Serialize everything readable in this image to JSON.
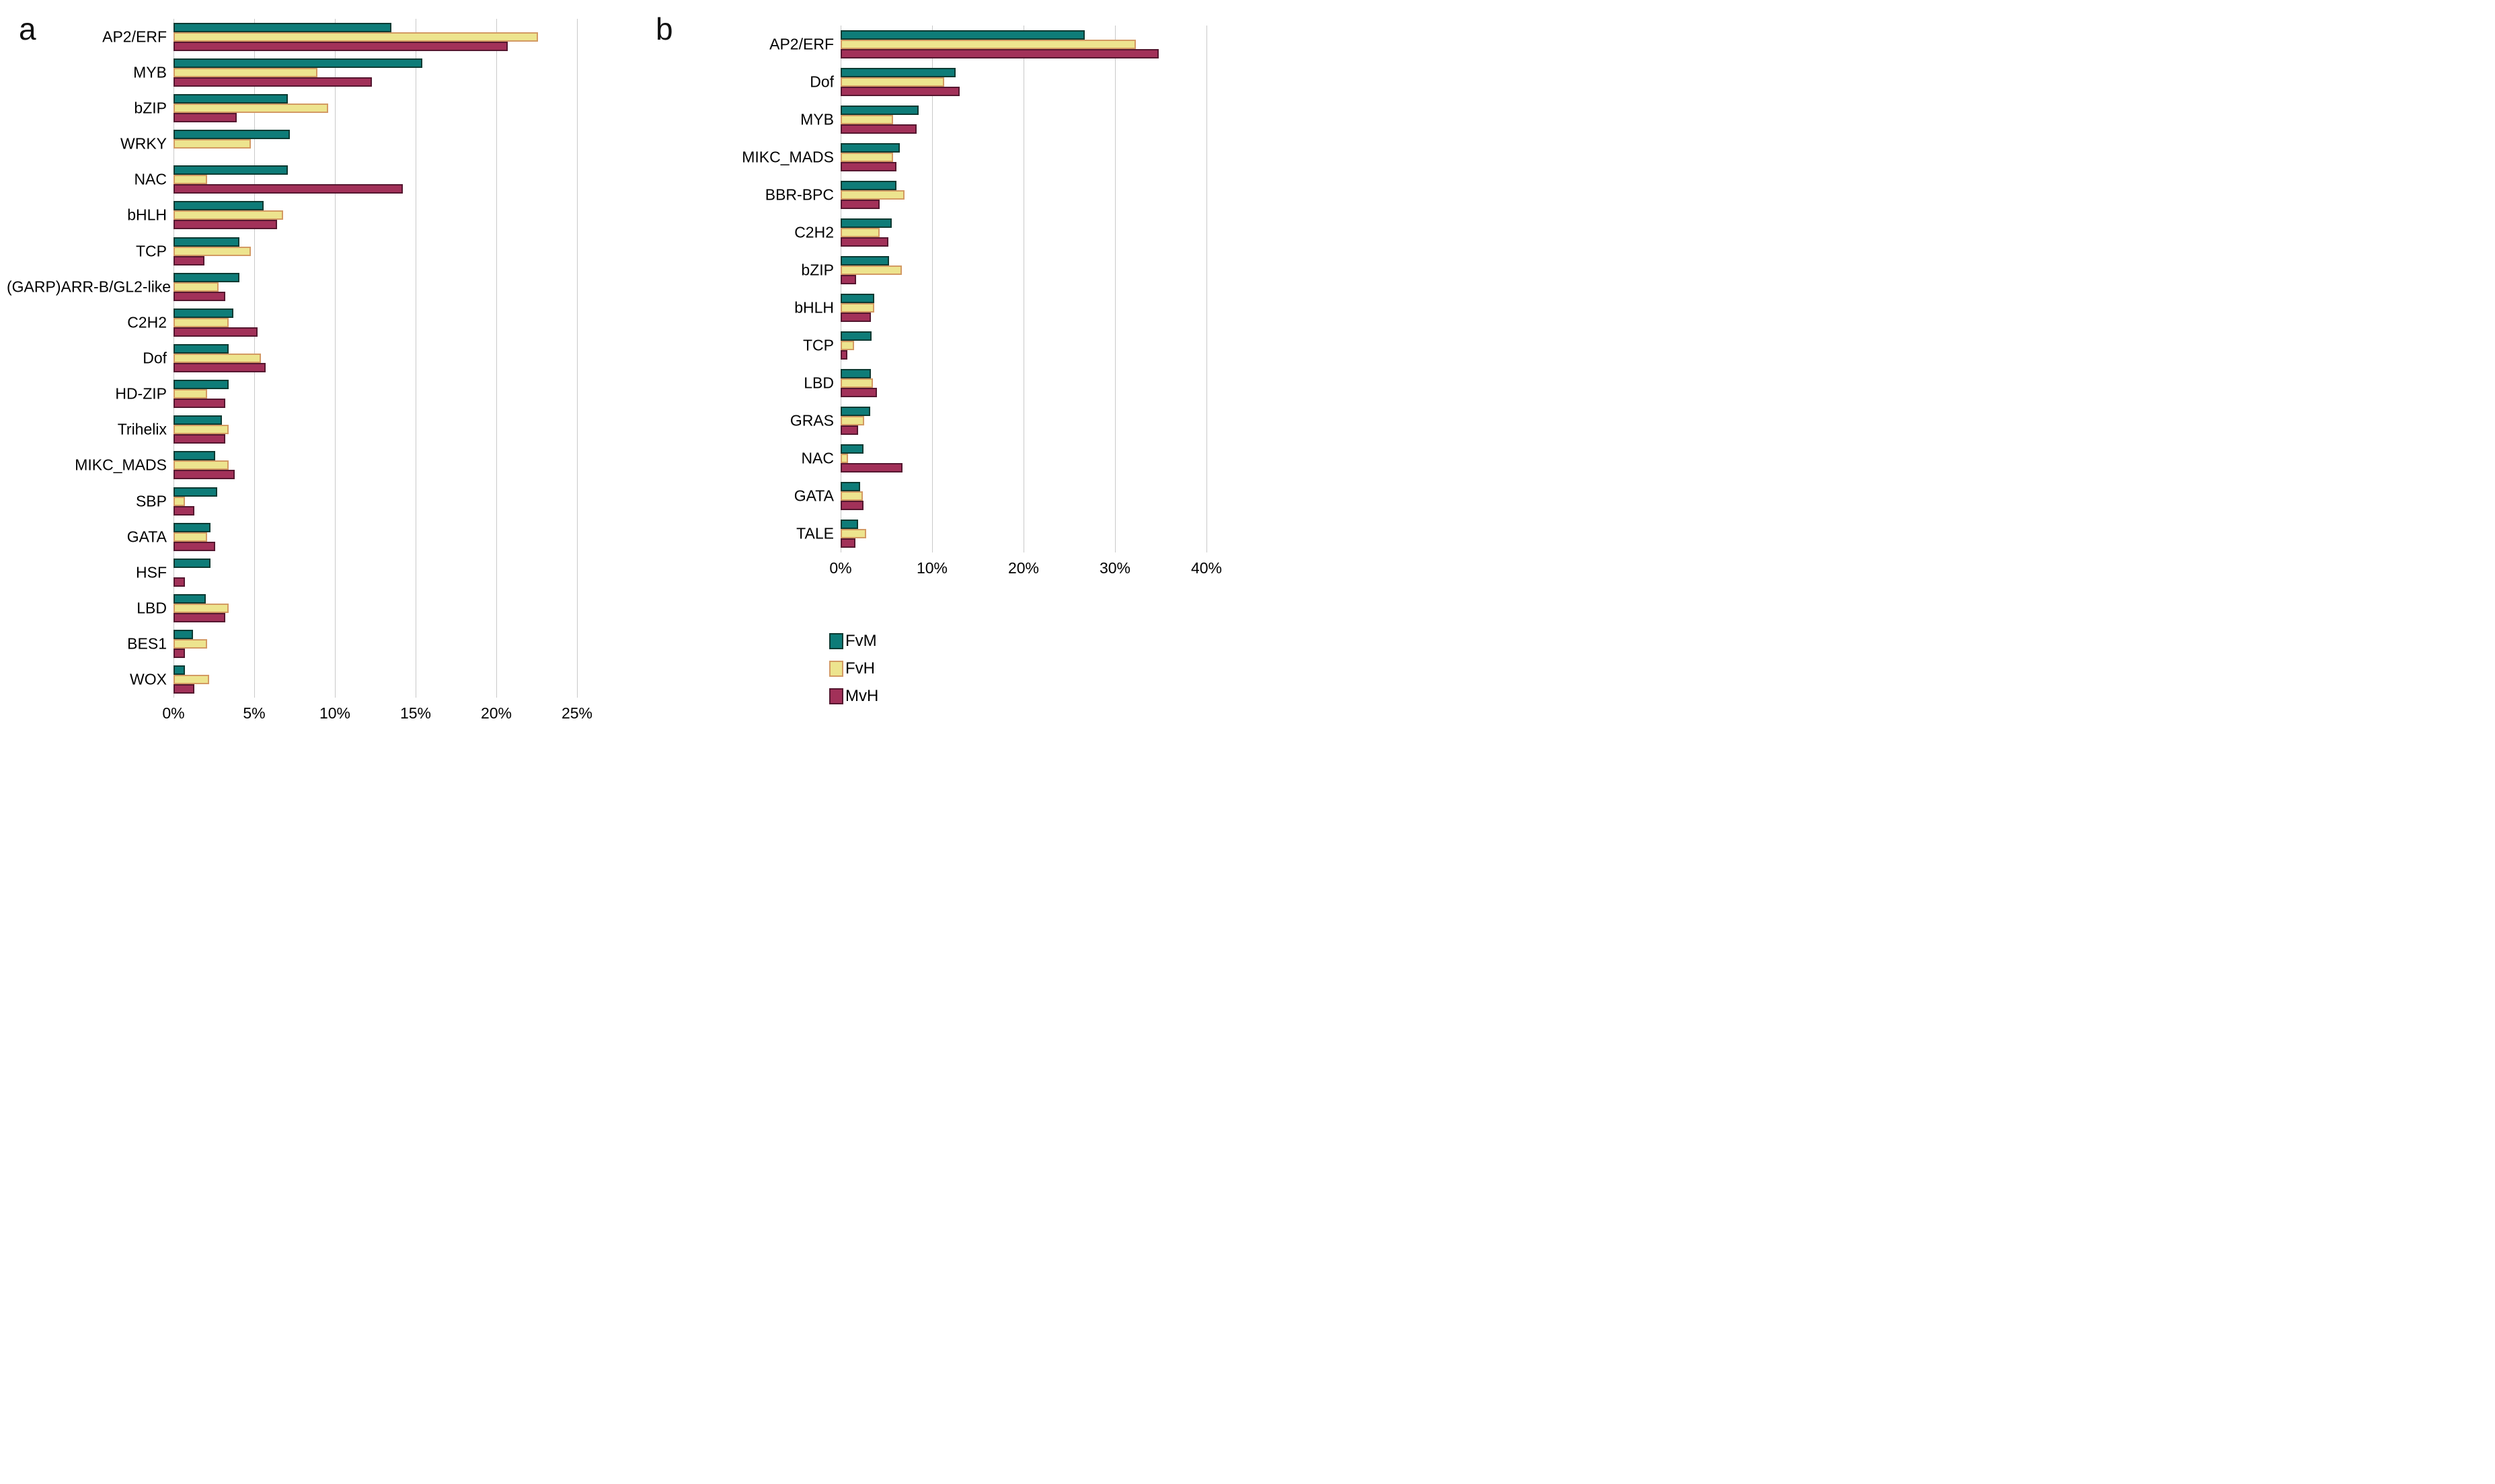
{
  "figure": {
    "background": "#ffffff",
    "unit": "%"
  },
  "legend": {
    "position": "bottom-right-of-panel-b",
    "entries": [
      {
        "label": "FvM",
        "fill": "#0E7C78",
        "border": "#0C3A32"
      },
      {
        "label": "FvH",
        "fill": "#EDE48E",
        "border": "#D39A63"
      },
      {
        "label": "MvH",
        "fill": "#A23159",
        "border": "#551730"
      }
    ]
  },
  "chart_data": [
    {
      "type": "bar",
      "orientation": "horizontal",
      "panel_label": "a",
      "title": "",
      "xlabel": "",
      "ylabel": "",
      "unit": "%",
      "grid": true,
      "xlim": [
        0,
        26
      ],
      "x_tick_step": 5,
      "x_ticks": [
        "0%",
        "5%",
        "10%",
        "15%",
        "20%",
        "25%"
      ],
      "categories": [
        "AP2/ERF",
        "MYB",
        "bZIP",
        "WRKY",
        "NAC",
        "bHLH",
        "TCP",
        "(GARP)ARR-B/GL2-like",
        "C2H2",
        "Dof",
        "HD-ZIP",
        "Trihelix",
        "MIKC_MADS",
        "SBP",
        "GATA",
        "HSF",
        "LBD",
        "BES1",
        "WOX"
      ],
      "series": [
        {
          "name": "FvM",
          "values": [
            13.5,
            15.4,
            7.1,
            7.2,
            7.1,
            5.6,
            4.1,
            4.1,
            3.7,
            3.4,
            3.4,
            3.0,
            2.6,
            2.7,
            2.3,
            2.3,
            2.0,
            1.2,
            0.7
          ]
        },
        {
          "name": "FvH",
          "values": [
            22.6,
            8.9,
            9.6,
            4.8,
            2.1,
            6.8,
            4.8,
            2.8,
            3.4,
            5.4,
            2.1,
            3.4,
            3.4,
            0.7,
            2.1,
            0,
            3.4,
            2.1,
            2.2
          ]
        },
        {
          "name": "MvH",
          "values": [
            20.7,
            12.3,
            3.9,
            0,
            14.2,
            6.4,
            1.9,
            3.2,
            5.2,
            5.7,
            3.2,
            3.2,
            3.8,
            1.3,
            2.6,
            0.7,
            3.2,
            0.7,
            1.3
          ]
        }
      ]
    },
    {
      "type": "bar",
      "orientation": "horizontal",
      "panel_label": "b",
      "title": "",
      "xlabel": "",
      "ylabel": "",
      "unit": "%",
      "grid": true,
      "xlim": [
        0,
        42
      ],
      "x_tick_step": 10,
      "x_ticks": [
        "0%",
        "10%",
        "20%",
        "30%",
        "40%"
      ],
      "categories": [
        "AP2/ERF",
        "Dof",
        "MYB",
        "MIKC_MADS",
        "BBR-BPC",
        "C2H2",
        "bZIP",
        "bHLH",
        "TCP",
        "LBD",
        "GRAS",
        "NAC",
        "GATA",
        "TALE"
      ],
      "series": [
        {
          "name": "FvM",
          "values": [
            26.7,
            12.6,
            8.5,
            6.5,
            6.1,
            5.6,
            5.3,
            3.7,
            3.4,
            3.3,
            3.2,
            2.5,
            2.1,
            1.9
          ]
        },
        {
          "name": "FvH",
          "values": [
            32.3,
            11.3,
            5.7,
            5.7,
            7.0,
            4.3,
            6.7,
            3.7,
            1.5,
            3.5,
            2.6,
            0.8,
            2.4,
            2.8
          ]
        },
        {
          "name": "MvH",
          "values": [
            34.8,
            13.0,
            8.3,
            6.1,
            4.3,
            5.2,
            1.7,
            3.3,
            0.7,
            4.0,
            1.9,
            6.8,
            2.5,
            1.6
          ]
        }
      ]
    }
  ]
}
